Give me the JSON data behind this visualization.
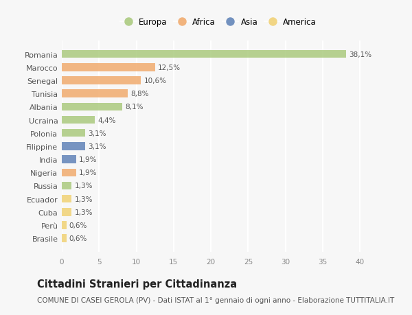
{
  "countries": [
    "Romania",
    "Marocco",
    "Senegal",
    "Tunisia",
    "Albania",
    "Ucraina",
    "Polonia",
    "Filippine",
    "India",
    "Nigeria",
    "Russia",
    "Ecuador",
    "Cuba",
    "Perù",
    "Brasile"
  ],
  "values": [
    38.1,
    12.5,
    10.6,
    8.8,
    8.1,
    4.4,
    3.1,
    3.1,
    1.9,
    1.9,
    1.3,
    1.3,
    1.3,
    0.6,
    0.6
  ],
  "labels": [
    "38,1%",
    "12,5%",
    "10,6%",
    "8,8%",
    "8,1%",
    "4,4%",
    "3,1%",
    "3,1%",
    "1,9%",
    "1,9%",
    "1,3%",
    "1,3%",
    "1,3%",
    "0,6%",
    "0,6%"
  ],
  "continents": [
    "Europa",
    "Africa",
    "Africa",
    "Africa",
    "Europa",
    "Europa",
    "Europa",
    "Asia",
    "Asia",
    "Africa",
    "Europa",
    "America",
    "America",
    "America",
    "America"
  ],
  "continent_colors": {
    "Europa": "#a8c87a",
    "Africa": "#f0a868",
    "Asia": "#5b7fb5",
    "America": "#f0d070"
  },
  "legend_order": [
    "Europa",
    "Africa",
    "Asia",
    "America"
  ],
  "title": "Cittadini Stranieri per Cittadinanza",
  "subtitle": "COMUNE DI CASEI GEROLA (PV) - Dati ISTAT al 1° gennaio di ogni anno - Elaborazione TUTTITALIA.IT",
  "xlim": [
    0,
    42
  ],
  "xticks": [
    0,
    5,
    10,
    15,
    20,
    25,
    30,
    35,
    40
  ],
  "bg_color": "#f7f7f7",
  "bar_height": 0.6,
  "title_fontsize": 10.5,
  "subtitle_fontsize": 7.5,
  "label_fontsize": 7.5,
  "ytick_fontsize": 8,
  "xtick_fontsize": 7.5
}
